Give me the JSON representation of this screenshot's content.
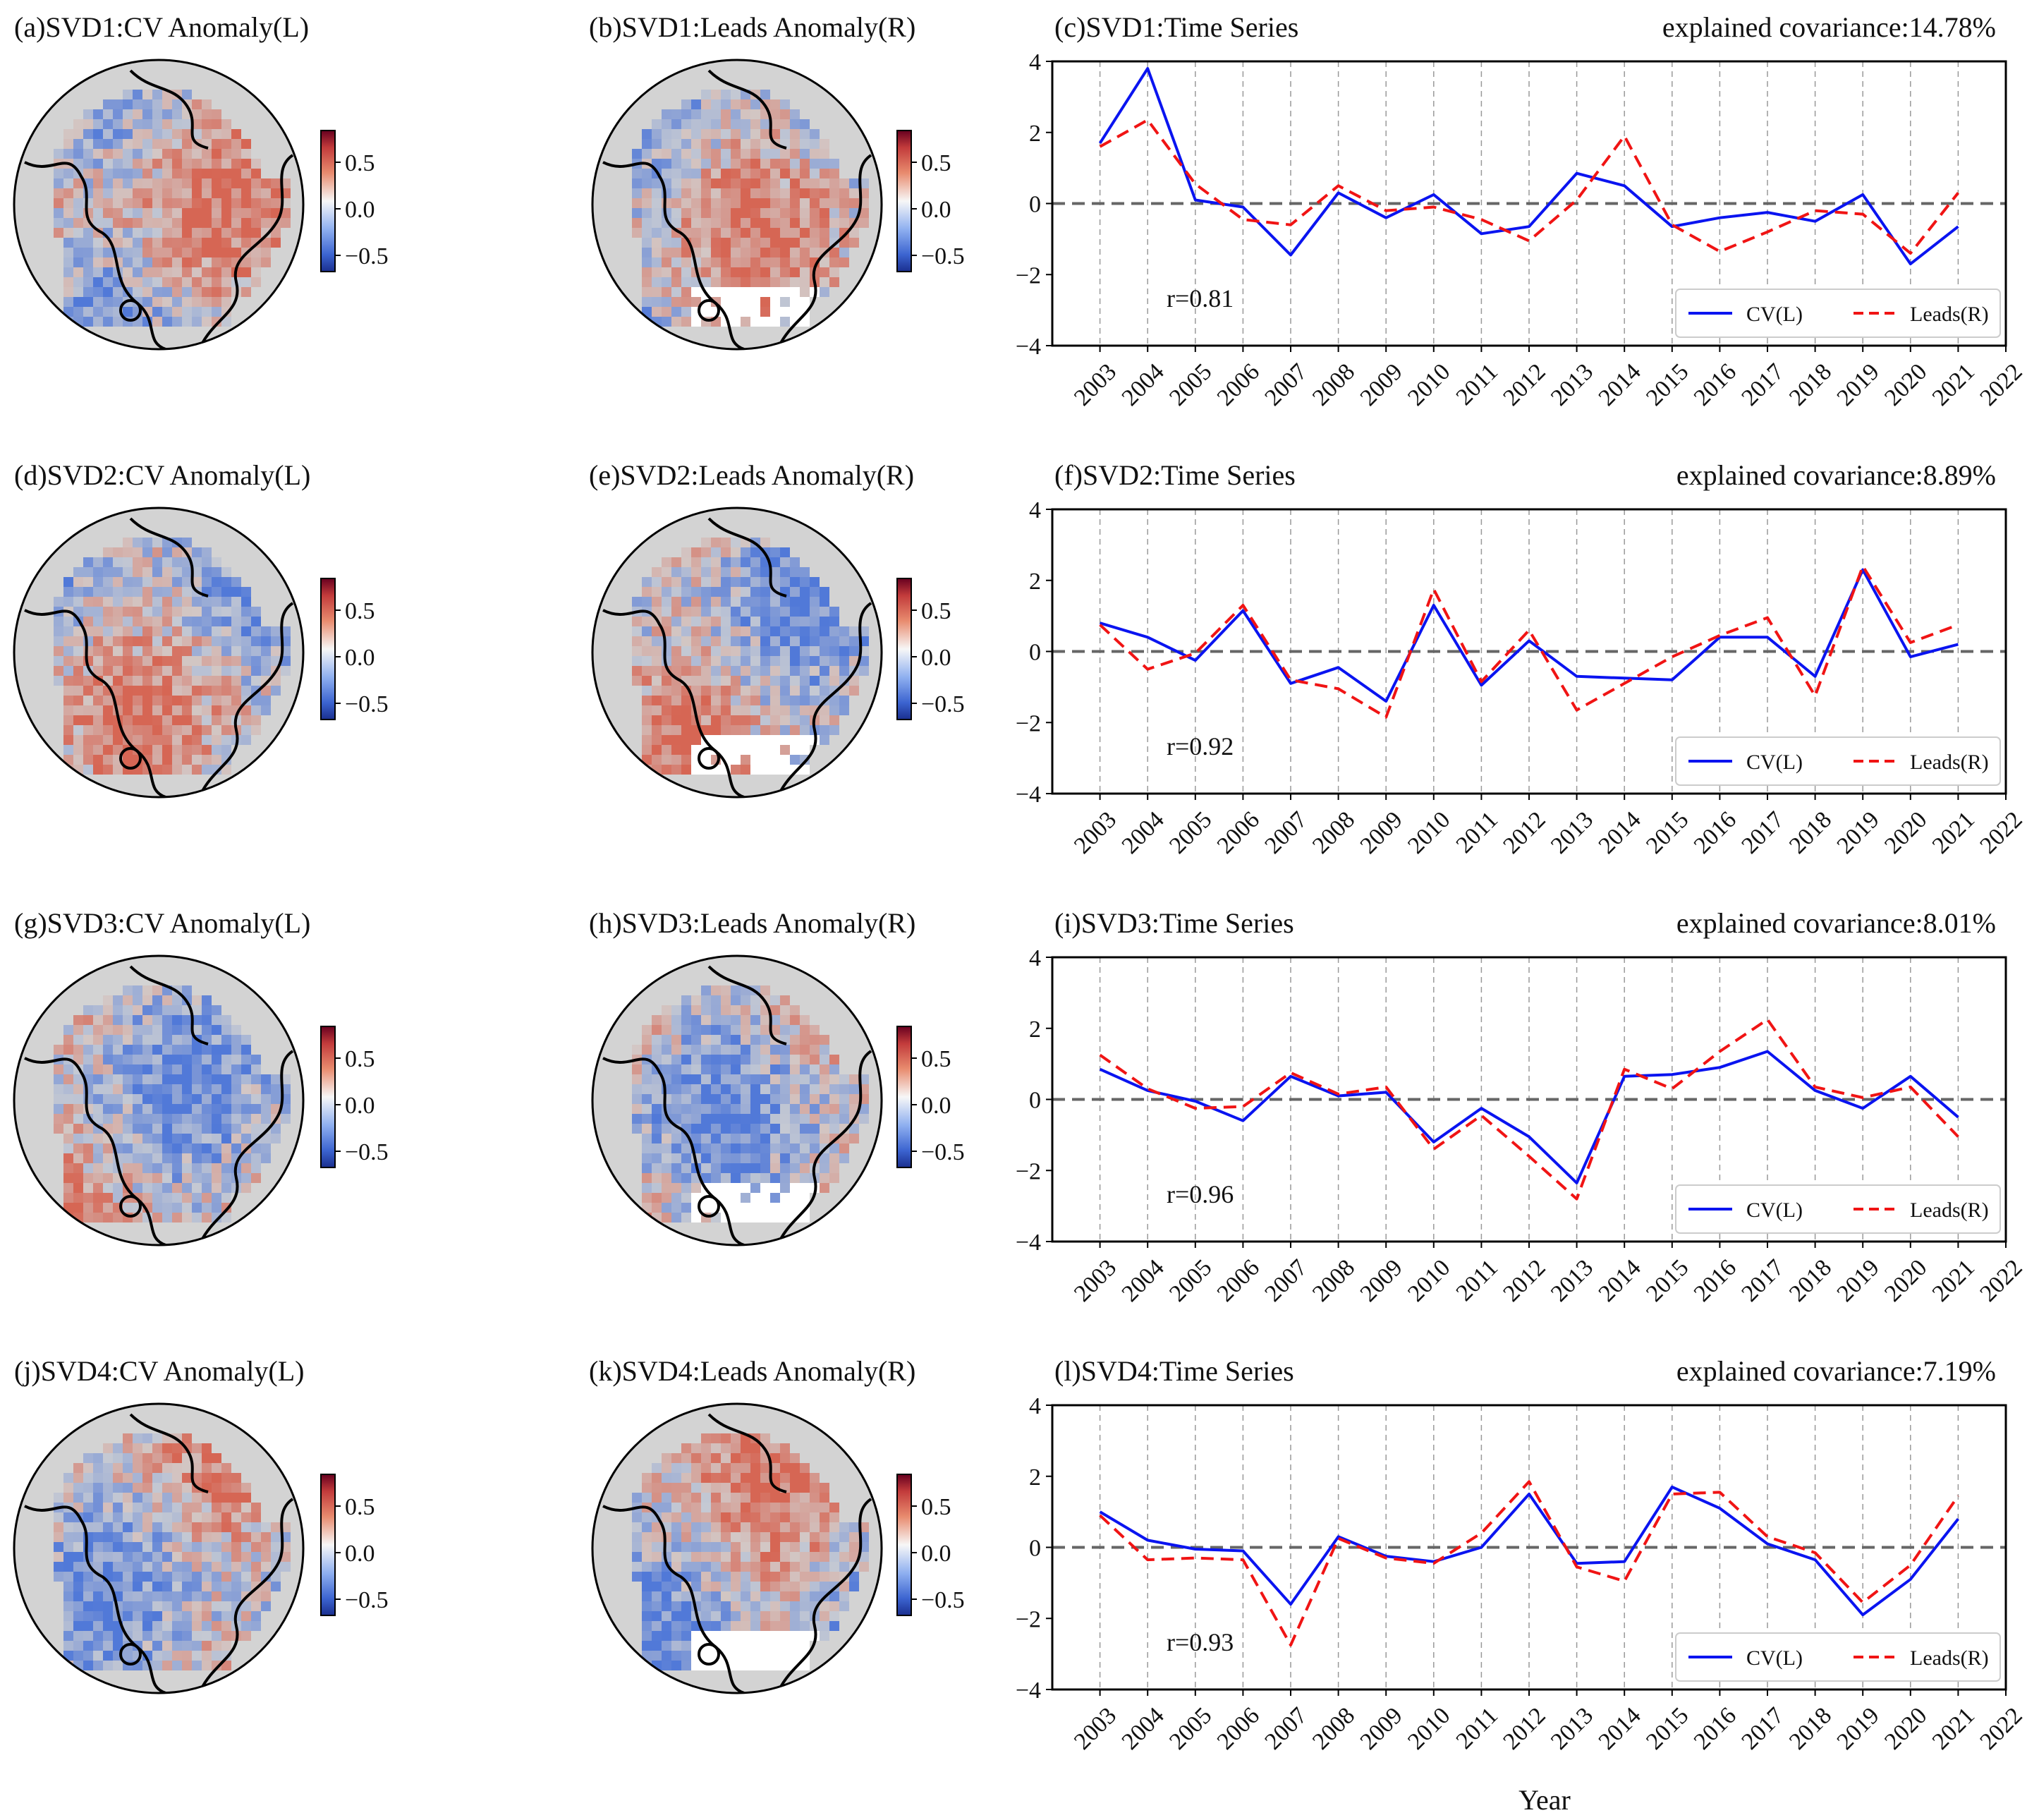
{
  "colors": {
    "cv": "#0a14f0",
    "leads": "#f01414",
    "zero_line": "#666666",
    "grid": "#999999",
    "land": "#d3d3d3",
    "anomaly_pos": "#d6604d",
    "anomaly_neg": "#4a74d8",
    "missing": "#ffffff"
  },
  "colorbar": {
    "ticks": [
      "0.5",
      "0.0",
      "−0.5"
    ]
  },
  "xlabel": "Year",
  "panels": [
    {
      "map_left_title": "(a)SVD1:CV Anomaly(L)",
      "map_right_title": "(b)SVD1:Leads Anomaly(R)",
      "ts_title": "(c)SVD1:Time Series",
      "covariance": "explained covariance:14.78%",
      "r": "r=0.81"
    },
    {
      "map_left_title": "(d)SVD2:CV Anomaly(L)",
      "map_right_title": "(e)SVD2:Leads Anomaly(R)",
      "ts_title": "(f)SVD2:Time Series",
      "covariance": "explained covariance:8.89%",
      "r": "r=0.92"
    },
    {
      "map_left_title": "(g)SVD3:CV Anomaly(L)",
      "map_right_title": "(h)SVD3:Leads Anomaly(R)",
      "ts_title": "(i)SVD3:Time Series",
      "covariance": "explained covariance:8.01%",
      "r": "r=0.96"
    },
    {
      "map_left_title": "(j)SVD4:CV Anomaly(L)",
      "map_right_title": "(k)SVD4:Leads Anomaly(R)",
      "ts_title": "(l)SVD4:Time Series",
      "covariance": "explained covariance:7.19%",
      "r": "r=0.93"
    }
  ],
  "chart_data": [
    {
      "type": "line",
      "title": "(c)SVD1:Time Series",
      "annotation": "explained covariance:14.78%",
      "correlation": "r=0.81",
      "xlabel": "Year",
      "ylabel": "",
      "ylim": [
        -4,
        4
      ],
      "yticks": [
        "4",
        "2",
        "0",
        "−2",
        "−4"
      ],
      "x_ticks": [
        "2003",
        "2004",
        "2005",
        "2006",
        "2007",
        "2008",
        "2009",
        "2010",
        "2011",
        "2012",
        "2013",
        "2014",
        "2015",
        "2016",
        "2017",
        "2018",
        "2019",
        "2020",
        "2021",
        "2022"
      ],
      "x": [
        2003,
        2004,
        2005,
        2006,
        2007,
        2008,
        2009,
        2010,
        2011,
        2012,
        2013,
        2014,
        2015,
        2016,
        2017,
        2018,
        2019,
        2020,
        2021
      ],
      "legend": [
        "CV(L)",
        "Leads(R)"
      ],
      "legend_position": "lower-right",
      "series": [
        {
          "name": "CV(L)",
          "style": "solid",
          "values": [
            1.7,
            3.8,
            0.1,
            -0.1,
            -1.45,
            0.3,
            -0.4,
            0.25,
            -0.85,
            -0.65,
            0.85,
            0.5,
            -0.65,
            -0.4,
            -0.25,
            -0.5,
            0.25,
            -1.7,
            -0.65
          ]
        },
        {
          "name": "Leads(R)",
          "style": "dashed",
          "values": [
            1.6,
            2.35,
            0.55,
            -0.45,
            -0.6,
            0.5,
            -0.2,
            -0.1,
            -0.45,
            -1.05,
            0.1,
            1.9,
            -0.6,
            -1.35,
            -0.8,
            -0.2,
            -0.3,
            -1.4,
            0.3
          ]
        }
      ]
    },
    {
      "type": "line",
      "title": "(f)SVD2:Time Series",
      "annotation": "explained covariance:8.89%",
      "correlation": "r=0.92",
      "xlabel": "Year",
      "ylabel": "",
      "ylim": [
        -4,
        4
      ],
      "yticks": [
        "4",
        "2",
        "0",
        "−2",
        "−4"
      ],
      "x_ticks": [
        "2003",
        "2004",
        "2005",
        "2006",
        "2007",
        "2008",
        "2009",
        "2010",
        "2011",
        "2012",
        "2013",
        "2014",
        "2015",
        "2016",
        "2017",
        "2018",
        "2019",
        "2020",
        "2021",
        "2022"
      ],
      "x": [
        2003,
        2004,
        2005,
        2006,
        2007,
        2008,
        2009,
        2010,
        2011,
        2012,
        2013,
        2014,
        2015,
        2016,
        2017,
        2018,
        2019,
        2020,
        2021
      ],
      "legend": [
        "CV(L)",
        "Leads(R)"
      ],
      "legend_position": "lower-right",
      "series": [
        {
          "name": "CV(L)",
          "style": "solid",
          "values": [
            0.8,
            0.4,
            -0.25,
            1.15,
            -0.9,
            -0.45,
            -1.4,
            1.3,
            -0.95,
            0.3,
            -0.7,
            -0.75,
            -0.8,
            0.4,
            0.4,
            -0.7,
            2.3,
            -0.15,
            0.2
          ]
        },
        {
          "name": "Leads(R)",
          "style": "dashed",
          "values": [
            0.75,
            -0.5,
            -0.05,
            1.3,
            -0.8,
            -1.05,
            -1.85,
            1.75,
            -0.85,
            0.6,
            -1.65,
            -0.9,
            -0.15,
            0.45,
            0.95,
            -1.25,
            2.4,
            0.25,
            0.75
          ]
        }
      ]
    },
    {
      "type": "line",
      "title": "(i)SVD3:Time Series",
      "annotation": "explained covariance:8.01%",
      "correlation": "r=0.96",
      "xlabel": "Year",
      "ylabel": "",
      "ylim": [
        -4,
        4
      ],
      "yticks": [
        "4",
        "2",
        "0",
        "−2",
        "−4"
      ],
      "x_ticks": [
        "2003",
        "2004",
        "2005",
        "2006",
        "2007",
        "2008",
        "2009",
        "2010",
        "2011",
        "2012",
        "2013",
        "2014",
        "2015",
        "2016",
        "2017",
        "2018",
        "2019",
        "2020",
        "2021",
        "2022"
      ],
      "x": [
        2003,
        2004,
        2005,
        2006,
        2007,
        2008,
        2009,
        2010,
        2011,
        2012,
        2013,
        2014,
        2015,
        2016,
        2017,
        2018,
        2019,
        2020,
        2021
      ],
      "legend": [
        "CV(L)",
        "Leads(R)"
      ],
      "legend_position": "lower-right",
      "series": [
        {
          "name": "CV(L)",
          "style": "solid",
          "values": [
            0.85,
            0.25,
            -0.05,
            -0.6,
            0.65,
            0.1,
            0.2,
            -1.2,
            -0.25,
            -1.05,
            -2.35,
            0.65,
            0.7,
            0.9,
            1.35,
            0.25,
            -0.25,
            0.65,
            -0.5
          ]
        },
        {
          "name": "Leads(R)",
          "style": "dashed",
          "values": [
            1.25,
            0.3,
            -0.25,
            -0.2,
            0.75,
            0.15,
            0.35,
            -1.4,
            -0.45,
            -1.6,
            -2.8,
            0.85,
            0.3,
            1.35,
            2.25,
            0.35,
            0.05,
            0.35,
            -1.05
          ]
        }
      ]
    },
    {
      "type": "line",
      "title": "(l)SVD4:Time Series",
      "annotation": "explained covariance:7.19%",
      "correlation": "r=0.93",
      "xlabel": "Year",
      "ylabel": "",
      "ylim": [
        -4,
        4
      ],
      "yticks": [
        "4",
        "2",
        "0",
        "−2",
        "−4"
      ],
      "x_ticks": [
        "2003",
        "2004",
        "2005",
        "2006",
        "2007",
        "2008",
        "2009",
        "2010",
        "2011",
        "2012",
        "2013",
        "2014",
        "2015",
        "2016",
        "2017",
        "2018",
        "2019",
        "2020",
        "2021",
        "2022"
      ],
      "x": [
        2003,
        2004,
        2005,
        2006,
        2007,
        2008,
        2009,
        2010,
        2011,
        2012,
        2013,
        2014,
        2015,
        2016,
        2017,
        2018,
        2019,
        2020,
        2021
      ],
      "legend": [
        "CV(L)",
        "Leads(R)"
      ],
      "legend_position": "lower-right",
      "series": [
        {
          "name": "CV(L)",
          "style": "solid",
          "values": [
            1.0,
            0.2,
            -0.05,
            -0.1,
            -1.6,
            0.3,
            -0.25,
            -0.4,
            0.0,
            1.5,
            -0.45,
            -0.4,
            1.7,
            1.1,
            0.1,
            -0.35,
            -1.9,
            -0.9,
            0.8
          ]
        },
        {
          "name": "Leads(R)",
          "style": "dashed",
          "values": [
            0.9,
            -0.35,
            -0.3,
            -0.35,
            -2.75,
            0.25,
            -0.3,
            -0.45,
            0.4,
            1.85,
            -0.55,
            -0.95,
            1.5,
            1.55,
            0.3,
            -0.15,
            -1.55,
            -0.5,
            1.45
          ]
        }
      ]
    }
  ]
}
